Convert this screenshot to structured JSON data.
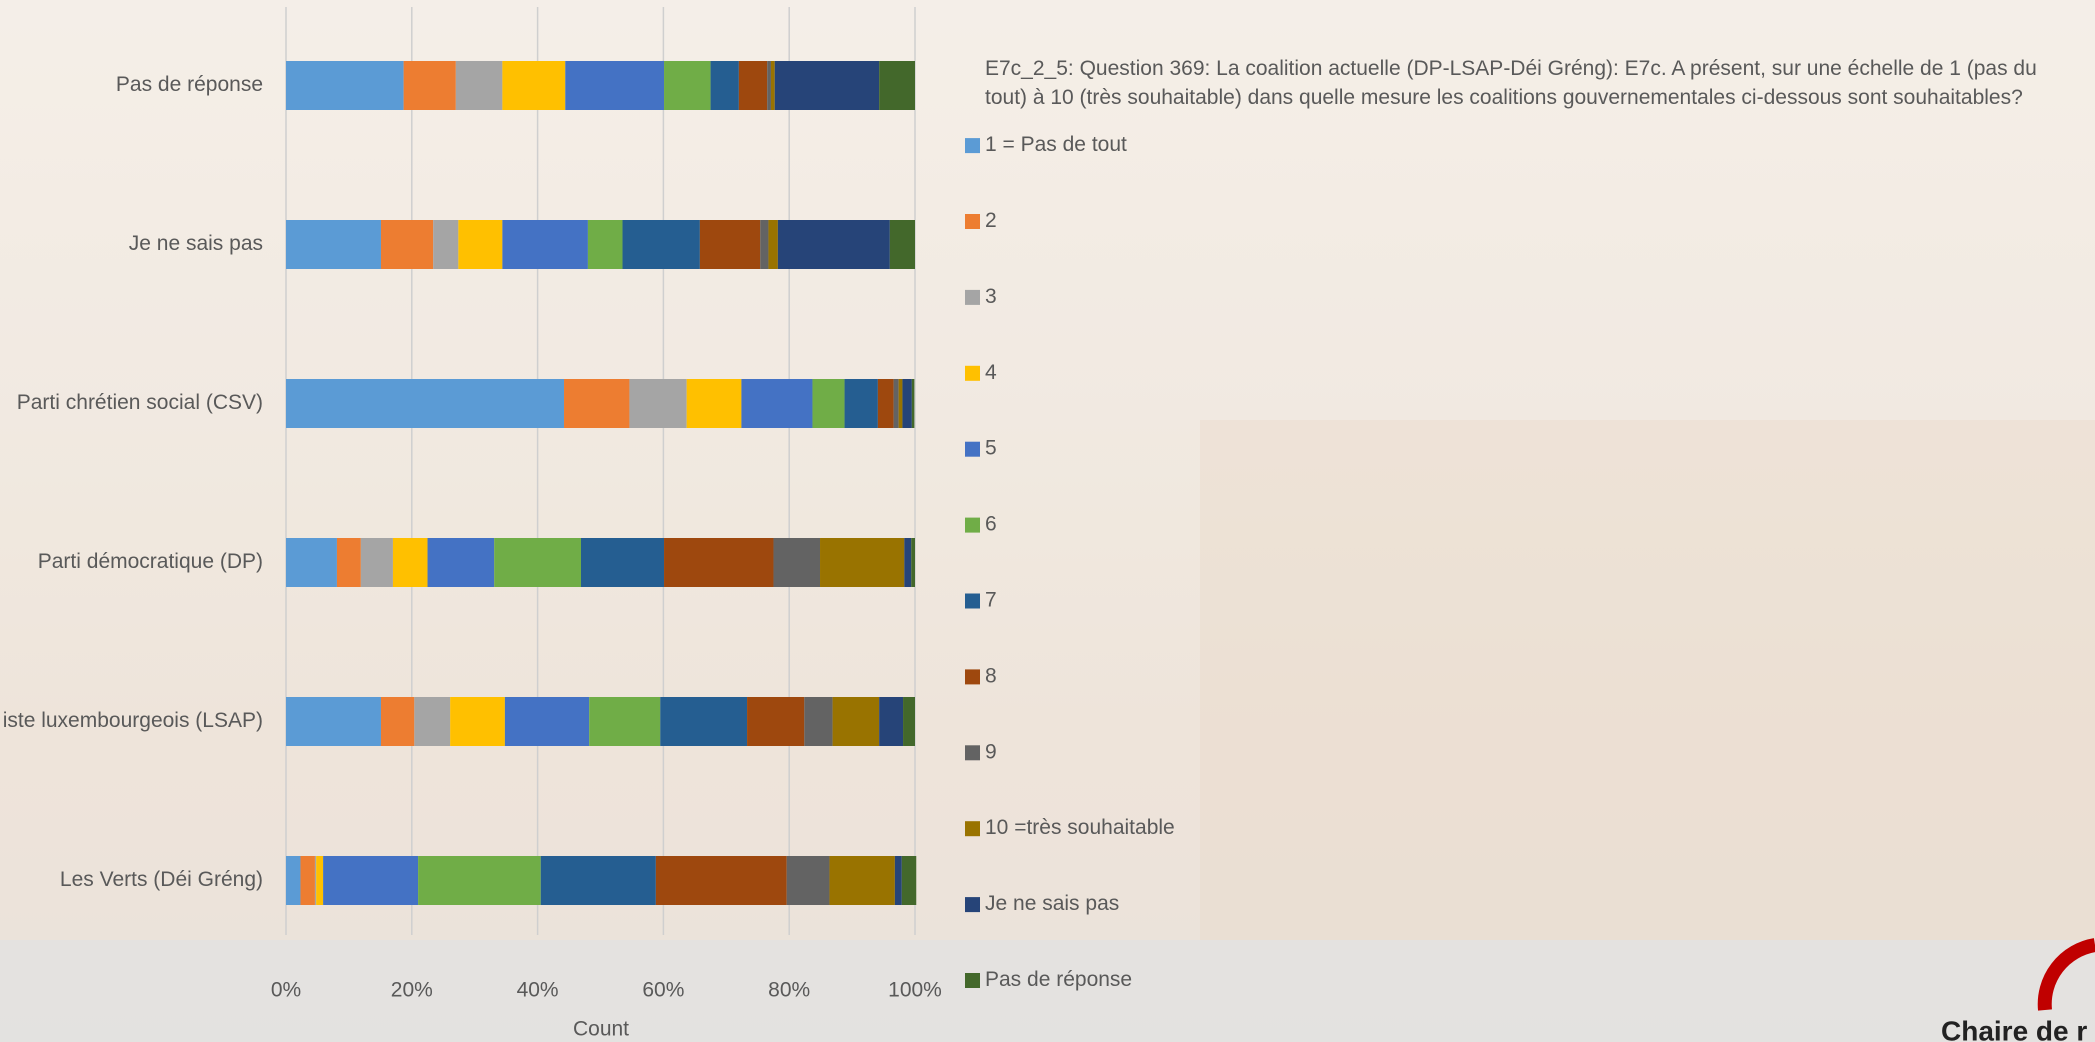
{
  "chart_data": {
    "type": "stacked-bar-horizontal",
    "title": "E7c_2_5: Question 369: La coalition actuelle (DP-LSAP-Déi Gréng): E7c. A présent, sur une échelle de 1 (pas du tout) à 10 (très souhaitable) dans quelle mesure les coalitions gouvernementales ci-dessous sont souhaitables?",
    "x_label": "Count",
    "categories": [
      "Pas de réponse",
      "Je ne sais pas",
      "Parti chrétien social (CSV)",
      "Parti démocratique (DP)",
      "iste luxembourgeois (LSAP)",
      "Les Verts (Déi Gréng)"
    ],
    "series": [
      {
        "name": "1 = Pas de tout",
        "color": "#5B9BD5",
        "values": [
          18.7,
          15.1,
          44.2,
          8.1,
          15.1,
          2.3
        ]
      },
      {
        "name": "2",
        "color": "#ED7D31",
        "values": [
          8.3,
          8.3,
          10.4,
          3.8,
          5.3,
          2.3
        ]
      },
      {
        "name": "3",
        "color": "#A5A5A5",
        "values": [
          7.4,
          4.0,
          9.1,
          5.1,
          5.7,
          0.2
        ]
      },
      {
        "name": "4",
        "color": "#FFC000",
        "values": [
          10.0,
          7.0,
          8.7,
          5.5,
          8.7,
          1.1
        ]
      },
      {
        "name": "5",
        "color": "#4472C4",
        "values": [
          15.7,
          13.6,
          11.3,
          10.6,
          13.4,
          15.1
        ]
      },
      {
        "name": "6",
        "color": "#70AD47",
        "values": [
          7.4,
          5.5,
          5.1,
          13.8,
          11.3,
          19.5
        ]
      },
      {
        "name": "7",
        "color": "#255E91",
        "values": [
          4.5,
          12.3,
          5.3,
          13.2,
          13.8,
          18.3
        ]
      },
      {
        "name": "8",
        "color": "#9E480E",
        "values": [
          4.5,
          9.6,
          2.5,
          17.4,
          9.1,
          20.8
        ]
      },
      {
        "name": "9",
        "color": "#636363",
        "values": [
          0.6,
          1.3,
          0.8,
          7.4,
          4.5,
          6.8
        ]
      },
      {
        "name": "10 =très souhaitable",
        "color": "#997300",
        "values": [
          0.6,
          1.5,
          0.6,
          13.4,
          7.4,
          10.4
        ]
      },
      {
        "name": "Je ne sais pas",
        "color": "#264478",
        "values": [
          16.6,
          17.8,
          1.5,
          1.1,
          3.8,
          1.1
        ]
      },
      {
        "name": "Pas de réponse",
        "color": "#43682B",
        "values": [
          5.7,
          4.0,
          0.4,
          0.6,
          1.9,
          2.3
        ]
      }
    ],
    "xlim": [
      0,
      100
    ],
    "xticks": [
      {
        "value": 0,
        "label": "0%"
      },
      {
        "value": 20,
        "label": "20%"
      },
      {
        "value": 40,
        "label": "40%"
      },
      {
        "value": 60,
        "label": "60%"
      },
      {
        "value": 80,
        "label": "80%"
      },
      {
        "value": 100,
        "label": "100%"
      }
    ],
    "grid": true,
    "legend": "right"
  },
  "logo_text": "Chaire de r"
}
